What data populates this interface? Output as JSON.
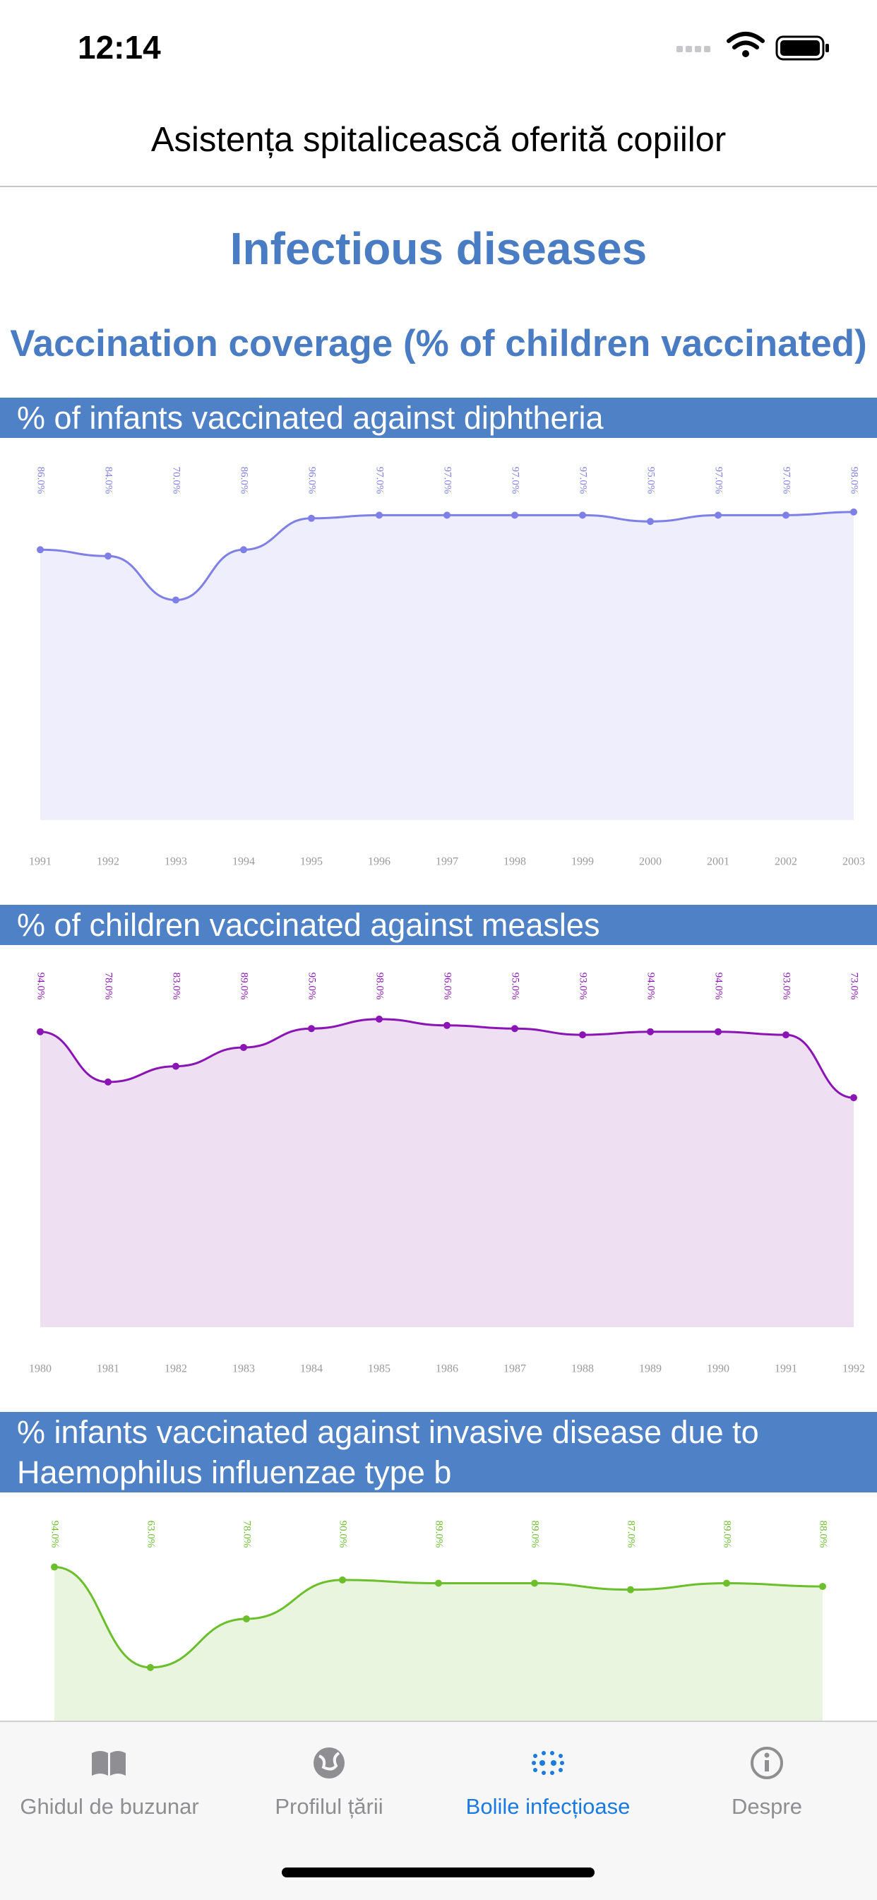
{
  "status_bar": {
    "time": "12:14"
  },
  "header": {
    "title": "Asistența spitalicească oferită copiilor"
  },
  "section_title": "Infectious diseases",
  "subtitle": "Vaccination coverage (% of children vaccinated)",
  "chart_data": [
    {
      "type": "area",
      "title": "% of infants vaccinated against diphtheria",
      "categories": [
        "1991",
        "1992",
        "1993",
        "1994",
        "1995",
        "1996",
        "1997",
        "1998",
        "1999",
        "2000",
        "2001",
        "2002",
        "2003"
      ],
      "values": [
        86,
        84,
        70,
        86,
        96,
        97,
        97,
        97,
        97,
        95,
        97,
        97,
        98
      ],
      "value_labels": [
        "86.0%",
        "84.0%",
        "70.0%",
        "86.0%",
        "96.0%",
        "97.0%",
        "97.0%",
        "97.0%",
        "97.0%",
        "95.0%",
        "97.0%",
        "97.0%",
        "98.0%"
      ],
      "color": "#7f7fe8",
      "fill": "#eeeefc",
      "ylim": [
        0,
        100
      ]
    },
    {
      "type": "area",
      "title": "% of children vaccinated against measles",
      "categories": [
        "1980",
        "1981",
        "1982",
        "1983",
        "1984",
        "1985",
        "1986",
        "1987",
        "1988",
        "1989",
        "1990",
        "1991",
        "1992"
      ],
      "values": [
        94,
        78,
        83,
        89,
        95,
        98,
        96,
        95,
        93,
        94,
        94,
        93,
        73
      ],
      "value_labels": [
        "94.0%",
        "78.0%",
        "83.0%",
        "89.0%",
        "95.0%",
        "98.0%",
        "96.0%",
        "95.0%",
        "93.0%",
        "94.0%",
        "94.0%",
        "93.0%",
        "73.0%"
      ],
      "color": "#8a14b4",
      "fill": "#eedff3",
      "ylim": [
        0,
        100
      ]
    },
    {
      "type": "area",
      "title": "% infants vaccinated against invasive disease due to Haemophilus influenzae type b",
      "categories": [
        null,
        null,
        null,
        null,
        null,
        null,
        null,
        null,
        null
      ],
      "values": [
        94,
        63,
        78,
        90,
        89,
        89,
        87,
        89,
        88
      ],
      "value_labels": [
        "94.0%",
        "63.0%",
        "78.0%",
        "90.0%",
        "89.0%",
        "89.0%",
        "87.0%",
        "89.0%",
        "88.0%"
      ],
      "color": "#6abf2a",
      "fill": "#eaf5e0",
      "ylim": [
        0,
        100
      ]
    }
  ],
  "tab_bar": {
    "items": [
      "Ghidul de buzunar",
      "Profilul țării",
      "Bolile infecțioase",
      "Despre"
    ]
  }
}
